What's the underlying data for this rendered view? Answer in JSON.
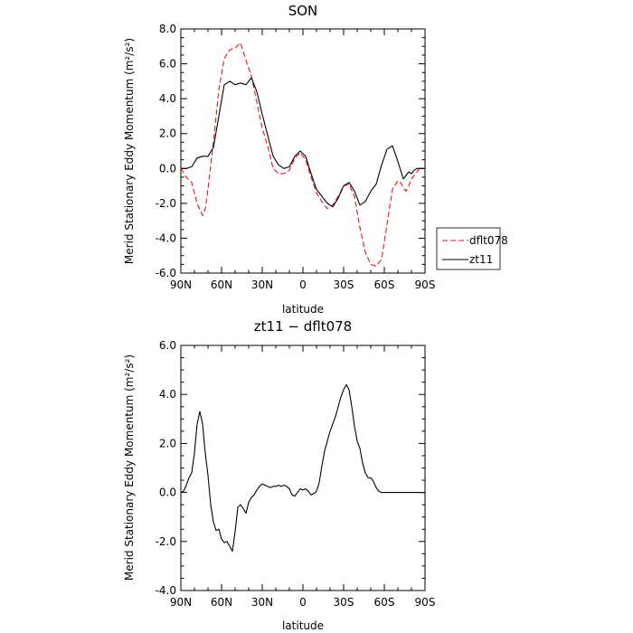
{
  "chart_data": [
    {
      "type": "line",
      "title": "SON",
      "xlabel": "latitude",
      "ylabel": "Merid Stationary Eddy Momentum (m²/s²)",
      "xlim": [
        -90,
        90
      ],
      "ylim": [
        -6,
        8
      ],
      "x_ticks": [
        -90,
        -60,
        -30,
        0,
        30,
        60,
        90
      ],
      "x_tick_labels": [
        "90N",
        "60N",
        "30N",
        "0",
        "30S",
        "60S",
        "90S"
      ],
      "y_ticks": [
        -6,
        -4,
        -2,
        0,
        2,
        4,
        6,
        8
      ],
      "y_tick_labels": [
        "-6.0",
        "-4.0",
        "-2.0",
        "0.0",
        "2.0",
        "4.0",
        "6.0",
        "8.0"
      ],
      "legend_position": "right",
      "series": [
        {
          "name": "dflt078",
          "color": "#e8141e",
          "dash": "dashed",
          "x": [
            -90,
            -86,
            -82,
            -78,
            -74,
            -72,
            -70,
            -66,
            -62,
            -58,
            -54,
            -50,
            -46,
            -42,
            -38,
            -34,
            -30,
            -26,
            -22,
            -18,
            -14,
            -10,
            -6,
            -2,
            2,
            6,
            10,
            14,
            18,
            22,
            26,
            30,
            34,
            38,
            42,
            46,
            50,
            54,
            58,
            62,
            66,
            70,
            72,
            74,
            76,
            78,
            80,
            82,
            84,
            86,
            88,
            90
          ],
          "y": [
            0.0,
            -0.5,
            -0.8,
            -2.0,
            -2.7,
            -2.3,
            -1.2,
            1.5,
            4.5,
            6.3,
            6.8,
            6.9,
            7.2,
            6.2,
            5.3,
            3.8,
            2.3,
            1.3,
            0.0,
            -0.3,
            -0.3,
            -0.1,
            0.6,
            0.9,
            0.5,
            -0.5,
            -1.4,
            -1.9,
            -2.3,
            -2.1,
            -1.6,
            -1.0,
            -0.9,
            -1.6,
            -3.4,
            -4.8,
            -5.5,
            -5.6,
            -5.2,
            -3.2,
            -1.2,
            -0.7,
            -0.8,
            -1.1,
            -1.3,
            -1.0,
            -0.6,
            -0.4,
            -0.2,
            0.0,
            0.0,
            0.0
          ]
        },
        {
          "name": "zt11",
          "color": "#000000",
          "dash": "solid",
          "x": [
            -90,
            -86,
            -82,
            -78,
            -74,
            -70,
            -66,
            -62,
            -58,
            -54,
            -50,
            -46,
            -42,
            -38,
            -34,
            -30,
            -26,
            -22,
            -18,
            -14,
            -10,
            -6,
            -2,
            2,
            6,
            10,
            14,
            18,
            22,
            26,
            30,
            34,
            38,
            42,
            46,
            50,
            54,
            58,
            62,
            66,
            70,
            74,
            76,
            78,
            80,
            82,
            84,
            86,
            88,
            90
          ],
          "y": [
            0.0,
            0.0,
            0.1,
            0.6,
            0.7,
            0.7,
            1.2,
            3.0,
            4.8,
            5.0,
            4.8,
            4.9,
            4.8,
            5.2,
            4.4,
            3.1,
            1.9,
            0.7,
            0.2,
            0.0,
            0.1,
            0.7,
            1.0,
            0.7,
            -0.3,
            -1.2,
            -1.6,
            -2.0,
            -2.2,
            -1.7,
            -1.0,
            -0.8,
            -1.3,
            -2.1,
            -1.9,
            -1.3,
            -0.9,
            0.2,
            1.1,
            1.3,
            0.4,
            -0.6,
            -0.4,
            -0.2,
            -0.3,
            -0.1,
            0.0,
            0.0,
            0.0,
            0.0
          ]
        }
      ]
    },
    {
      "type": "line",
      "title": "zt11 − dflt078",
      "xlabel": "latitude",
      "ylabel": "Merid Stationary Eddy Momentum (m²/s²)",
      "xlim": [
        -90,
        90
      ],
      "ylim": [
        -4,
        6
      ],
      "x_ticks": [
        -90,
        -60,
        -30,
        0,
        30,
        60,
        90
      ],
      "x_tick_labels": [
        "90N",
        "60N",
        "30N",
        "0",
        "30S",
        "60S",
        "90S"
      ],
      "y_ticks": [
        -4,
        -2,
        0,
        2,
        4,
        6
      ],
      "y_tick_labels": [
        "-4.0",
        "-2.0",
        "0.0",
        "2.0",
        "4.0",
        "6.0"
      ],
      "series": [
        {
          "name": "",
          "color": "#000000",
          "dash": "solid",
          "x": [
            -90,
            -88,
            -86,
            -84,
            -82,
            -80,
            -78,
            -76,
            -74,
            -72,
            -70,
            -68,
            -66,
            -64,
            -62,
            -60,
            -58,
            -56,
            -54,
            -52,
            -50,
            -48,
            -46,
            -44,
            -42,
            -40,
            -38,
            -36,
            -34,
            -32,
            -30,
            -28,
            -26,
            -24,
            -22,
            -20,
            -18,
            -16,
            -14,
            -12,
            -10,
            -8,
            -6,
            -4,
            -2,
            0,
            2,
            4,
            6,
            8,
            10,
            12,
            14,
            16,
            18,
            20,
            22,
            24,
            26,
            28,
            30,
            32,
            34,
            36,
            38,
            40,
            42,
            44,
            46,
            48,
            50,
            52,
            54,
            56,
            58,
            60,
            62,
            64,
            66,
            68,
            70,
            72,
            74,
            76,
            78,
            80,
            82,
            84,
            86,
            88,
            90
          ],
          "y": [
            0.0,
            0.05,
            0.3,
            0.6,
            0.8,
            1.6,
            2.8,
            3.3,
            2.8,
            1.6,
            0.7,
            -0.5,
            -1.2,
            -1.55,
            -1.5,
            -1.9,
            -2.05,
            -2.0,
            -2.2,
            -2.4,
            -1.6,
            -0.6,
            -0.5,
            -0.65,
            -0.85,
            -0.4,
            -0.2,
            -0.1,
            0.1,
            0.25,
            0.35,
            0.3,
            0.25,
            0.2,
            0.25,
            0.25,
            0.3,
            0.25,
            0.3,
            0.25,
            0.15,
            -0.1,
            -0.15,
            0.0,
            0.15,
            0.1,
            0.15,
            0.05,
            -0.1,
            -0.05,
            0.05,
            0.4,
            1.1,
            1.7,
            2.1,
            2.5,
            2.8,
            3.1,
            3.5,
            3.9,
            4.2,
            4.4,
            4.2,
            3.5,
            2.7,
            2.1,
            1.8,
            1.2,
            0.8,
            0.6,
            0.6,
            0.45,
            0.2,
            0.05,
            0.0,
            0.0,
            0.0,
            0.0,
            0.0,
            0.0,
            0.0,
            0.0,
            0.0,
            0.0,
            0.0,
            0.0,
            0.0,
            0.0,
            0.0,
            0.0,
            0.0
          ]
        }
      ]
    }
  ]
}
